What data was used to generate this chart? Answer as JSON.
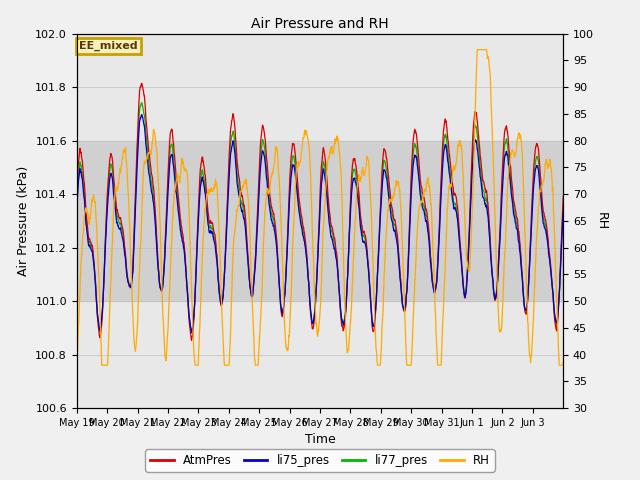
{
  "title": "Air Pressure and RH",
  "xlabel": "Time",
  "ylabel_left": "Air Pressure (kPa)",
  "ylabel_right": "RH",
  "ylim_left": [
    100.6,
    102.0
  ],
  "ylim_right": [
    30,
    100
  ],
  "yticks_left": [
    100.6,
    100.8,
    101.0,
    101.2,
    101.4,
    101.6,
    101.8,
    102.0
  ],
  "yticks_right": [
    30,
    35,
    40,
    45,
    50,
    55,
    60,
    65,
    70,
    75,
    80,
    85,
    90,
    95,
    100
  ],
  "xtick_labels": [
    "May 19",
    "May 20",
    "May 21",
    "May 22",
    "May 23",
    "May 24",
    "May 25",
    "May 26",
    "May 27",
    "May 28",
    "May 29",
    "May 30",
    "May 31",
    "Jun 1",
    "Jun 2",
    "Jun 3"
  ],
  "label_box_text": "EE_mixed",
  "label_box_color": "#c8a000",
  "label_box_bg": "#f5f0c0",
  "background_color": "#f0f0f0",
  "plot_bg": "#e8e8e8",
  "inner_band_color": "#d8d8d8",
  "colors": {
    "AtmPres": "#dd0000",
    "li75_pres": "#0000cc",
    "li77_pres": "#00bb00",
    "RH": "#ffaa00"
  },
  "legend_labels": [
    "AtmPres",
    "li75_pres",
    "li77_pres",
    "RH"
  ],
  "legend_colors": [
    "#dd0000",
    "#0000cc",
    "#00bb00",
    "#ffaa00"
  ]
}
